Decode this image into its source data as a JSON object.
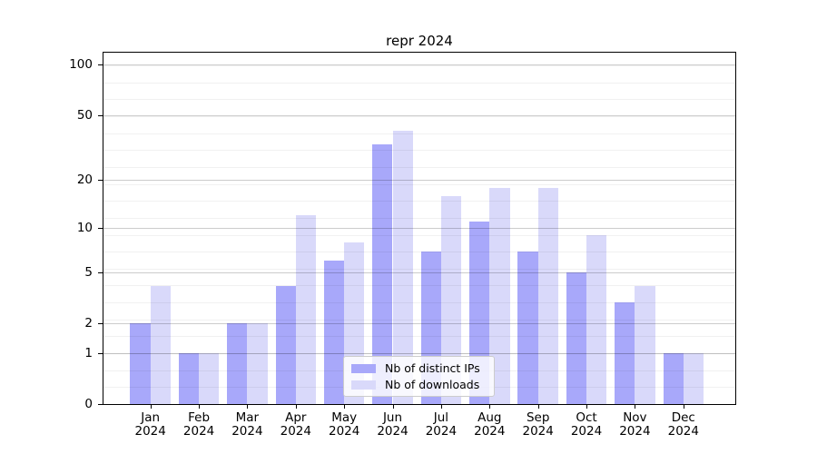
{
  "title": "repr 2024",
  "chart_data": {
    "type": "bar",
    "title": "repr 2024",
    "categories": [
      "Jan 2024",
      "Feb 2024",
      "Mar 2024",
      "Apr 2024",
      "May 2024",
      "Jun 2024",
      "Jul 2024",
      "Aug 2024",
      "Sep 2024",
      "Oct 2024",
      "Nov 2024",
      "Dec 2024"
    ],
    "months": [
      "Jan",
      "Feb",
      "Mar",
      "Apr",
      "May",
      "Jun",
      "Jul",
      "Aug",
      "Sep",
      "Oct",
      "Nov",
      "Dec"
    ],
    "year": "2024",
    "series": [
      {
        "name": "Nb of distinct IPs",
        "color": "#a8a8fa",
        "values": [
          2,
          1,
          2,
          4,
          6,
          33,
          7,
          11,
          7,
          5,
          3,
          1
        ]
      },
      {
        "name": "Nb of downloads",
        "color": "#d9d9fa",
        "values": [
          4,
          1,
          2,
          12,
          8,
          40,
          16,
          18,
          18,
          9,
          4,
          1
        ]
      }
    ],
    "xlabel": "",
    "ylabel": "",
    "yscale": "log1p",
    "yticks": [
      0,
      1,
      2,
      5,
      10,
      20,
      50,
      100
    ],
    "ylim": [
      0,
      118
    ],
    "grid": "both",
    "legend_position": "lower-center",
    "colors": {
      "axis": "#000000",
      "text": "#000000",
      "grid_major": "#cccccc",
      "grid_minor": "#f0f0f0",
      "legend_bg": "rgba(255,255,255,0.8)",
      "legend_border": "#cccccc"
    }
  }
}
